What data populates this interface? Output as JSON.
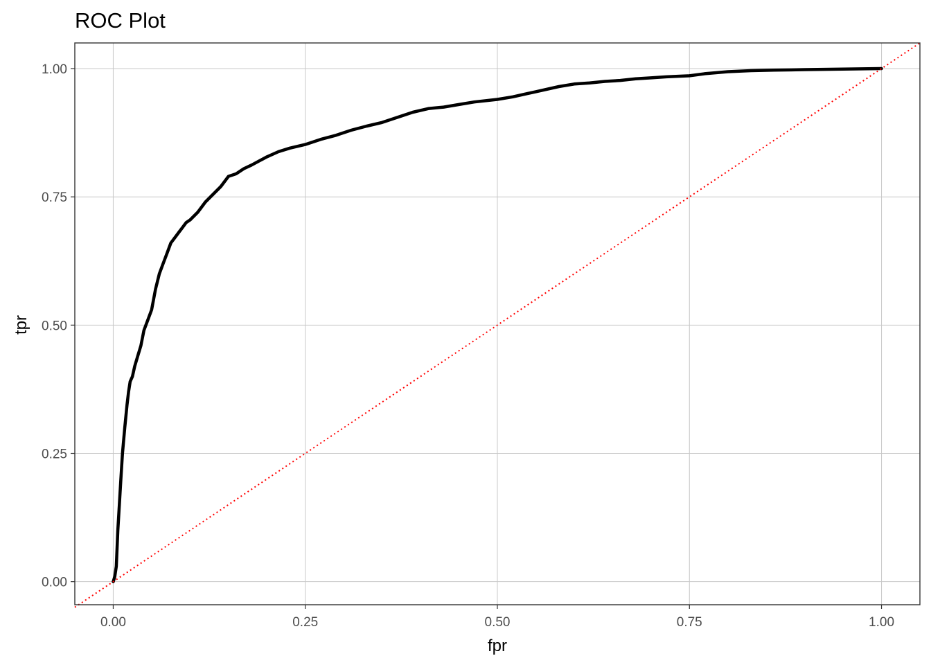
{
  "chart_data": {
    "type": "line",
    "title": "ROC Plot",
    "xlabel": "fpr",
    "ylabel": "tpr",
    "xlim": [
      -0.05,
      1.05
    ],
    "ylim": [
      -0.045,
      1.05
    ],
    "x_ticks": [
      0.0,
      0.25,
      0.5,
      0.75,
      1.0
    ],
    "y_ticks": [
      0.0,
      0.25,
      0.5,
      0.75,
      1.0
    ],
    "x_tick_labels": [
      "0.00",
      "0.25",
      "0.50",
      "0.75",
      "1.00"
    ],
    "y_tick_labels": [
      "0.00",
      "0.25",
      "0.50",
      "0.75",
      "1.00"
    ],
    "grid": true,
    "series": [
      {
        "style": "solid",
        "color": "#000000",
        "x": [
          0.0,
          0.002,
          0.004,
          0.006,
          0.008,
          0.01,
          0.012,
          0.015,
          0.018,
          0.02,
          0.022,
          0.025,
          0.028,
          0.032,
          0.036,
          0.04,
          0.045,
          0.05,
          0.055,
          0.06,
          0.065,
          0.07,
          0.075,
          0.08,
          0.085,
          0.09,
          0.095,
          0.1,
          0.11,
          0.12,
          0.13,
          0.14,
          0.15,
          0.16,
          0.17,
          0.18,
          0.19,
          0.2,
          0.215,
          0.23,
          0.25,
          0.27,
          0.29,
          0.31,
          0.33,
          0.35,
          0.37,
          0.39,
          0.41,
          0.43,
          0.45,
          0.47,
          0.5,
          0.52,
          0.55,
          0.58,
          0.6,
          0.62,
          0.64,
          0.66,
          0.68,
          0.7,
          0.72,
          0.75,
          0.77,
          0.8,
          0.83,
          0.86,
          0.9,
          0.95,
          1.0
        ],
        "y": [
          0.0,
          0.01,
          0.03,
          0.1,
          0.15,
          0.2,
          0.25,
          0.3,
          0.345,
          0.37,
          0.39,
          0.4,
          0.42,
          0.44,
          0.46,
          0.49,
          0.51,
          0.53,
          0.57,
          0.6,
          0.62,
          0.64,
          0.66,
          0.67,
          0.68,
          0.69,
          0.7,
          0.705,
          0.72,
          0.74,
          0.755,
          0.77,
          0.79,
          0.795,
          0.805,
          0.812,
          0.82,
          0.828,
          0.838,
          0.845,
          0.852,
          0.862,
          0.87,
          0.88,
          0.888,
          0.895,
          0.905,
          0.915,
          0.922,
          0.925,
          0.93,
          0.935,
          0.94,
          0.945,
          0.955,
          0.965,
          0.97,
          0.972,
          0.975,
          0.977,
          0.98,
          0.982,
          0.984,
          0.986,
          0.99,
          0.994,
          0.996,
          0.997,
          0.998,
          0.999,
          1.0
        ]
      },
      {
        "style": "dotted",
        "color": "#ff0000",
        "x": [
          -0.05,
          1.05
        ],
        "y": [
          -0.05,
          1.05
        ]
      }
    ]
  }
}
